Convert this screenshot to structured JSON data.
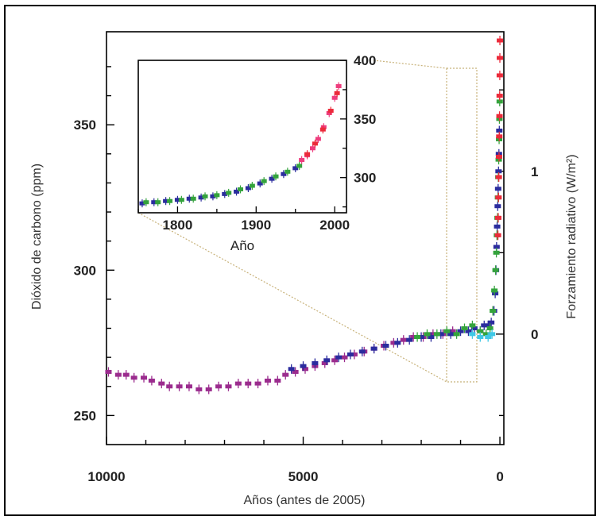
{
  "chart_data": [
    {
      "type": "scatter",
      "xlabel": "Años (antes de 2005)",
      "ylabel": "Dióxido de carbono (ppm)",
      "ylabel_right": "Forzamiento radiativo (W/m²)",
      "xlim": [
        10000,
        -100
      ],
      "ylim": [
        240,
        382
      ],
      "x_ticks": [
        "10000",
        "5000",
        "0"
      ],
      "x_tick_values": [
        10000,
        5000,
        0
      ],
      "y_ticks": [
        "250",
        "300",
        "350"
      ],
      "y_tick_values": [
        250,
        300,
        350
      ],
      "right_ticks": [
        "0",
        "1"
      ],
      "right_tick_values": [
        0,
        1
      ],
      "right_axis_ppm_for_0": 278,
      "right_axis_ppm_per_unit": 56,
      "colors": {
        "magenta": "#9b2c8e",
        "blue": "#2b2c9e",
        "green": "#34a33c",
        "red": "#ec2a3a",
        "pink": "#ee3d7e",
        "cyan": "#40c8e6"
      },
      "series": [
        {
          "color_key": "magenta",
          "points": [
            [
              9950,
              265
            ],
            [
              9700,
              264
            ],
            [
              9500,
              264
            ],
            [
              9300,
              263
            ],
            [
              9050,
              263
            ],
            [
              8850,
              262
            ],
            [
              8600,
              261
            ],
            [
              8400,
              260
            ],
            [
              8150,
              260
            ],
            [
              7900,
              260
            ],
            [
              7650,
              259
            ],
            [
              7400,
              259
            ],
            [
              7150,
              260
            ],
            [
              6900,
              260
            ],
            [
              6650,
              261
            ],
            [
              6400,
              261
            ],
            [
              6150,
              261
            ],
            [
              5900,
              262
            ],
            [
              5650,
              262
            ],
            [
              5450,
              264
            ],
            [
              5200,
              265
            ],
            [
              4950,
              266
            ],
            [
              4700,
              267
            ],
            [
              4450,
              268
            ],
            [
              4200,
              269
            ],
            [
              3950,
              270
            ],
            [
              3700,
              271
            ],
            [
              3450,
              272
            ],
            [
              3200,
              273
            ],
            [
              2950,
              274
            ],
            [
              2700,
              275
            ],
            [
              2450,
              276
            ],
            [
              2200,
              277
            ],
            [
              1950,
              277
            ],
            [
              1700,
              278
            ],
            [
              1450,
              278
            ],
            [
              1200,
              279
            ]
          ]
        },
        {
          "color_key": "blue",
          "points": [
            [
              5300,
              266
            ],
            [
              5000,
              267
            ],
            [
              4700,
              268
            ],
            [
              4400,
              269
            ],
            [
              4100,
              270
            ],
            [
              3800,
              271
            ],
            [
              3500,
              272
            ],
            [
              3200,
              273
            ],
            [
              2900,
              274
            ],
            [
              2600,
              275
            ],
            [
              2300,
              276
            ],
            [
              2000,
              277
            ],
            [
              1750,
              277
            ],
            [
              1500,
              278
            ],
            [
              1250,
              278
            ],
            [
              1000,
              279
            ],
            [
              800,
              279
            ],
            [
              650,
              280
            ],
            [
              500,
              279
            ],
            [
              400,
              281
            ],
            [
              300,
              281
            ],
            [
              220,
              282
            ],
            [
              150,
              286
            ],
            [
              120,
              292
            ],
            [
              100,
              300
            ],
            [
              85,
              308
            ],
            [
              70,
              315
            ],
            [
              55,
              322
            ],
            [
              45,
              328
            ],
            [
              35,
              334
            ],
            [
              25,
              340
            ],
            [
              15,
              348
            ]
          ]
        },
        {
          "color_key": "green",
          "points": [
            [
              2100,
              277
            ],
            [
              1850,
              278
            ],
            [
              1600,
              278
            ],
            [
              1350,
              279
            ],
            [
              1100,
              278
            ],
            [
              900,
              280
            ],
            [
              700,
              281
            ],
            [
              500,
              279
            ],
            [
              350,
              278
            ],
            [
              250,
              280
            ],
            [
              180,
              286
            ],
            [
              140,
              293
            ],
            [
              110,
              300
            ],
            [
              90,
              306
            ],
            [
              75,
              312
            ],
            [
              60,
              318
            ],
            [
              50,
              325
            ],
            [
              40,
              332
            ],
            [
              30,
              338
            ],
            [
              20,
              345
            ],
            [
              12,
              352
            ],
            [
              5,
              358
            ]
          ]
        },
        {
          "color_key": "cyan",
          "points": [
            [
              700,
              278
            ],
            [
              500,
              277
            ],
            [
              300,
              277
            ],
            [
              200,
              278
            ]
          ]
        },
        {
          "color_key": "red",
          "points": [
            [
              50,
              312
            ],
            [
              42,
              318
            ],
            [
              35,
              325
            ],
            [
              28,
              332
            ],
            [
              22,
              339
            ],
            [
              16,
              346
            ],
            [
              10,
              353
            ],
            [
              6,
              360
            ],
            [
              3,
              367
            ],
            [
              1,
              373
            ],
            [
              0,
              379
            ]
          ]
        }
      ]
    },
    {
      "type": "scatter",
      "inset": true,
      "xlabel": "Año",
      "xlim": [
        1750,
        2015
      ],
      "ylim": [
        270,
        400
      ],
      "x_ticks": [
        "1800",
        "1900",
        "2000"
      ],
      "x_tick_values": [
        1800,
        1900,
        2000
      ],
      "y_ticks": [
        "300",
        "350",
        "400"
      ],
      "y_tick_values": [
        300,
        350,
        400
      ],
      "series": [
        {
          "color_key": "blue",
          "points": [
            [
              1755,
              278
            ],
            [
              1770,
              279
            ],
            [
              1785,
              280
            ],
            [
              1800,
              281
            ],
            [
              1815,
              282
            ],
            [
              1830,
              283
            ],
            [
              1845,
              284
            ],
            [
              1860,
              286
            ],
            [
              1875,
              288
            ],
            [
              1890,
              291
            ],
            [
              1905,
              295
            ],
            [
              1920,
              299
            ],
            [
              1935,
              303
            ],
            [
              1950,
              308
            ]
          ]
        },
        {
          "color_key": "green",
          "points": [
            [
              1760,
              279
            ],
            [
              1775,
              279
            ],
            [
              1790,
              280
            ],
            [
              1805,
              281
            ],
            [
              1820,
              282
            ],
            [
              1835,
              284
            ],
            [
              1850,
              285
            ],
            [
              1865,
              287
            ],
            [
              1880,
              290
            ],
            [
              1895,
              293
            ],
            [
              1910,
              297
            ],
            [
              1925,
              301
            ],
            [
              1940,
              305
            ],
            [
              1955,
              310
            ]
          ]
        },
        {
          "color_key": "pink",
          "points": [
            [
              1958,
              315
            ],
            [
              1965,
              319
            ],
            [
              1972,
              325
            ],
            [
              1979,
              333
            ],
            [
              1986,
              343
            ],
            [
              1993,
              355
            ],
            [
              2000,
              368
            ],
            [
              2005,
              378
            ]
          ]
        },
        {
          "color_key": "red",
          "points": [
            [
              1965,
              320
            ],
            [
              1975,
              329
            ],
            [
              1985,
              341
            ],
            [
              1995,
              357
            ],
            [
              2003,
              372
            ]
          ]
        }
      ]
    }
  ]
}
